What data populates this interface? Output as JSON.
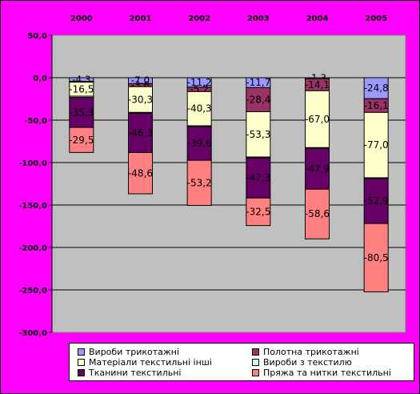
{
  "chart_data": {
    "type": "bar",
    "stacked": true,
    "categories": [
      "2000",
      "2001",
      "2002",
      "2003",
      "2004",
      "2005"
    ],
    "ylim": [
      -300,
      50
    ],
    "yticks": [
      50,
      0,
      -50,
      -100,
      -150,
      -200,
      -250,
      -300
    ],
    "ytick_labels": [
      "50,0",
      "0,0",
      "-50,0",
      "-100,0",
      "-150,0",
      "-200,0",
      "-250,0",
      "-300,0"
    ],
    "grid": true,
    "plot_background": "#c0c0c0",
    "legend_position": "bottom",
    "series": [
      {
        "name": "Вироби трикотажні",
        "color": "#9999ff",
        "values": [
          -4.3,
          -7.0,
          -11.2,
          -11.7,
          -1.3,
          -24.8
        ],
        "labels": [
          "-4,3",
          "-7,0",
          "-11,2",
          "-11,7",
          "-1,3",
          "-24,8"
        ]
      },
      {
        "name": "Полотна трикотажні",
        "color": "#993366",
        "values": [
          -1.0,
          -3.6,
          -5.2,
          -28.4,
          -14.1,
          -16.1
        ],
        "labels": [
          "",
          "-3,6",
          "-5,2",
          "-28,4",
          "-14,1",
          "-16,1"
        ]
      },
      {
        "name": "Матеріали текстильні інші",
        "color": "#ffffcc",
        "values": [
          -16.5,
          -30.3,
          -40.3,
          -53.3,
          -67.0,
          -77.0
        ],
        "labels": [
          "-16,5",
          "-30,3",
          "-40,3",
          "-53,3",
          "-67,0",
          "-77,0"
        ]
      },
      {
        "name": "Вироби з текстилю",
        "color": "#ccffff",
        "values": [
          -1.5,
          -1.0,
          -1.0,
          -1.0,
          -1.0,
          -1.0
        ],
        "labels": [
          "",
          "",
          "",
          "",
          "",
          ""
        ]
      },
      {
        "name": "Тканини текстильні",
        "color": "#660066",
        "values": [
          -35.3,
          -46.3,
          -39.6,
          -47.3,
          -47.9,
          -52.9
        ],
        "labels": [
          "-35,3",
          "-46,3",
          "-39,6",
          "-47,3",
          "-47,9",
          "-52,9"
        ]
      },
      {
        "name": "Пряжа та нитки текстильні",
        "color": "#ff8080",
        "values": [
          -29.5,
          -48.6,
          -53.2,
          -32.5,
          -58.6,
          -80.5
        ],
        "labels": [
          "-29,5",
          "-48,6",
          "-53,2",
          "-32,5",
          "-58,6",
          "-80,5"
        ]
      }
    ]
  }
}
